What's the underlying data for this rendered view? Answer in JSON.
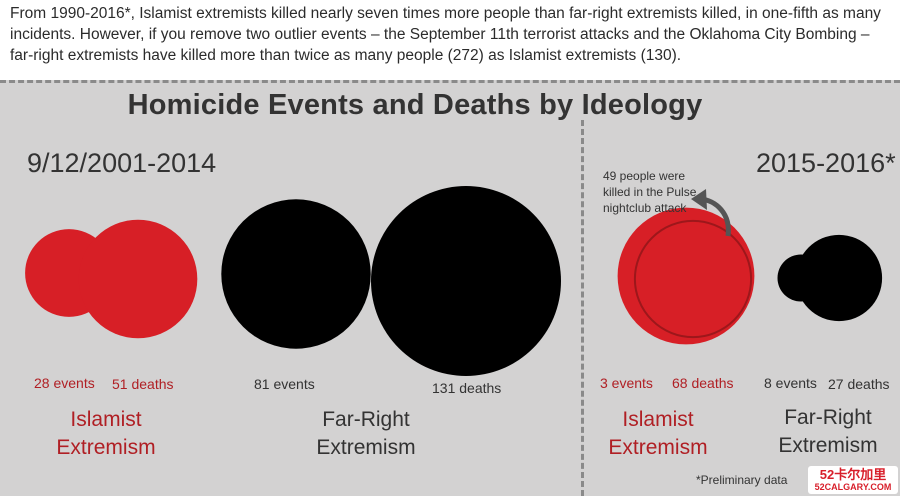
{
  "intro_text": "From 1990-2016*, Islamist extremists killed nearly seven times more people than far-right extremists killed, in one-fifth as many incidents. However, if you remove two outlier events – the September 11th terrorist attacks and the Oklahoma City Bombing – far-right extremists have killed more than twice as many people (272) as Islamist extremists (130).",
  "colors": {
    "islamist": "#d71f26",
    "far_right": "#000000",
    "panel": "#d3d2d2",
    "label_red": "#b01f24"
  },
  "chart_data": {
    "type": "bubble",
    "title": "Homicide Events and Deaths by Ideology",
    "periods": [
      {
        "label": "9/12/2001-2014",
        "groups": [
          {
            "name": "Islamist Extremism",
            "name_line1": "Islamist",
            "name_line2": "Extremism",
            "events": 28,
            "deaths": 51,
            "events_label": "28 events",
            "deaths_label": "51 deaths"
          },
          {
            "name": "Far-Right Extremism",
            "name_line1": "Far-Right",
            "name_line2": "Extremism",
            "events": 81,
            "deaths": 131,
            "events_label": "81 events",
            "deaths_label": "131 deaths"
          }
        ]
      },
      {
        "label": "2015-2016*",
        "groups": [
          {
            "name": "Islamist Extremism",
            "name_line1": "Islamist",
            "name_line2": "Extremism",
            "events": 3,
            "deaths": 68,
            "events_label": "3 events",
            "deaths_label": "68 deaths"
          },
          {
            "name": "Far-Right Extremism",
            "name_line1": "Far-Right",
            "name_line2": "Extremism",
            "events": 8,
            "deaths": 27,
            "events_label": "8 events",
            "deaths_label": "27 deaths"
          }
        ]
      }
    ],
    "annotation": {
      "text": "49 people were killed in the Pulse nightclub attack",
      "value": 49
    }
  },
  "footnote": "*Preliminary data",
  "watermark": {
    "main": "52卡尔加里",
    "sub": "52CALGARY.COM"
  }
}
